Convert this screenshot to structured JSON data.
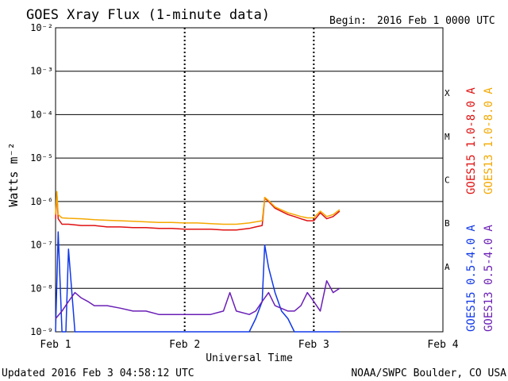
{
  "header": {
    "title": "GOES Xray Flux (1-minute data)",
    "begin_label": "Begin:",
    "begin_value": "2016 Feb 1 0000 UTC"
  },
  "footer": {
    "updated": "Updated 2016 Feb  3 04:58:12 UTC",
    "credit": "NOAA/SWPC Boulder, CO USA"
  },
  "colors": {
    "goes15_long": "#e01010",
    "goes13_long": "#f5a800",
    "goes15_short": "#1038e8",
    "goes13_short": "#6a1fb5",
    "grid": "#000000"
  },
  "chart_data": {
    "type": "line",
    "title": "GOES Xray Flux (1-minute data)",
    "xlabel": "Universal Time",
    "ylabel": "Watts m⁻²",
    "y_scale": "log",
    "ylim": [
      1e-09,
      0.01
    ],
    "xlim_days": [
      0,
      3
    ],
    "x_ticks": [
      {
        "day": 0,
        "label": "Feb 1"
      },
      {
        "day": 1,
        "label": "Feb 2"
      },
      {
        "day": 2,
        "label": "Feb 3"
      },
      {
        "day": 3,
        "label": "Feb 4"
      }
    ],
    "y_ticks": [
      {
        "exp": -9,
        "label": "10⁻⁹"
      },
      {
        "exp": -8,
        "label": "10⁻⁸"
      },
      {
        "exp": -7,
        "label": "10⁻⁷"
      },
      {
        "exp": -6,
        "label": "10⁻⁶"
      },
      {
        "exp": -5,
        "label": "10⁻⁵"
      },
      {
        "exp": -4,
        "label": "10⁻⁴"
      },
      {
        "exp": -3,
        "label": "10⁻³"
      },
      {
        "exp": -2,
        "label": "10⁻²"
      }
    ],
    "flare_classes": [
      {
        "label": "A",
        "center_exp": -7.5
      },
      {
        "label": "B",
        "center_exp": -6.5
      },
      {
        "label": "C",
        "center_exp": -5.5
      },
      {
        "label": "M",
        "center_exp": -4.5
      },
      {
        "label": "X",
        "center_exp": -3.5
      }
    ],
    "series": [
      {
        "name": "GOES15 1.0-8.0 A",
        "color": "#e01010",
        "x_day": [
          0.0,
          0.01,
          0.02,
          0.05,
          0.1,
          0.2,
          0.3,
          0.4,
          0.5,
          0.6,
          0.7,
          0.8,
          0.9,
          1.0,
          1.1,
          1.2,
          1.3,
          1.4,
          1.5,
          1.55,
          1.6,
          1.62,
          1.65,
          1.7,
          1.8,
          1.85,
          1.9,
          1.95,
          2.0,
          2.05,
          2.1,
          2.15,
          2.2
        ],
        "y": [
          4e-07,
          1.6e-06,
          4e-07,
          3e-07,
          3e-07,
          2.8e-07,
          2.8e-07,
          2.6e-07,
          2.6e-07,
          2.5e-07,
          2.5e-07,
          2.4e-07,
          2.4e-07,
          2.3e-07,
          2.3e-07,
          2.3e-07,
          2.2e-07,
          2.2e-07,
          2.4e-07,
          2.6e-07,
          2.8e-07,
          1.2e-06,
          1e-06,
          7e-07,
          5e-07,
          4.5e-07,
          4e-07,
          3.6e-07,
          3.6e-07,
          5.5e-07,
          4e-07,
          4.5e-07,
          6e-07
        ]
      },
      {
        "name": "GOES13 1.0-8.0 A",
        "color": "#f5a800",
        "x_day": [
          0.0,
          0.01,
          0.02,
          0.05,
          0.1,
          0.2,
          0.3,
          0.4,
          0.5,
          0.6,
          0.7,
          0.8,
          0.9,
          1.0,
          1.1,
          1.2,
          1.3,
          1.4,
          1.5,
          1.55,
          1.6,
          1.62,
          1.65,
          1.7,
          1.8,
          1.85,
          1.9,
          1.95,
          2.0,
          2.05,
          2.1,
          2.15,
          2.2
        ],
        "y": [
          5e-07,
          1.7e-06,
          5e-07,
          4.2e-07,
          4.1e-07,
          4e-07,
          3.8e-07,
          3.7e-07,
          3.6e-07,
          3.5e-07,
          3.4e-07,
          3.3e-07,
          3.3e-07,
          3.2e-07,
          3.2e-07,
          3.1e-07,
          3e-07,
          3e-07,
          3.2e-07,
          3.4e-07,
          3.6e-07,
          1.25e-06,
          1.05e-06,
          7.5e-07,
          5.5e-07,
          5e-07,
          4.5e-07,
          4.2e-07,
          4.2e-07,
          6e-07,
          4.5e-07,
          5e-07,
          6.5e-07
        ]
      },
      {
        "name": "GOES15 0.5-4.0 A",
        "color": "#1038e8",
        "x_day": [
          0.0,
          0.02,
          0.05,
          0.08,
          0.1,
          0.15,
          0.2,
          0.3,
          0.4,
          0.5,
          0.6,
          0.7,
          0.8,
          0.9,
          1.0,
          1.2,
          1.4,
          1.5,
          1.55,
          1.6,
          1.62,
          1.65,
          1.7,
          1.75,
          1.8,
          1.85,
          1.9,
          2.0,
          2.1,
          2.2
        ],
        "y": [
          1e-09,
          2e-07,
          1e-09,
          1e-09,
          8e-08,
          1e-09,
          1e-09,
          1e-09,
          1e-09,
          1e-09,
          1e-09,
          1e-09,
          1e-09,
          1e-09,
          1e-09,
          1e-09,
          1e-09,
          1e-09,
          2e-09,
          5e-09,
          1e-07,
          3e-08,
          8e-09,
          3e-09,
          2e-09,
          1e-09,
          1e-09,
          1e-09,
          1e-09,
          1e-09
        ]
      },
      {
        "name": "GOES13 0.5-4.0 A",
        "color": "#6a1fb5",
        "x_day": [
          0.0,
          0.05,
          0.1,
          0.15,
          0.2,
          0.25,
          0.3,
          0.4,
          0.5,
          0.6,
          0.7,
          0.8,
          0.9,
          1.0,
          1.1,
          1.2,
          1.3,
          1.35,
          1.4,
          1.5,
          1.55,
          1.6,
          1.65,
          1.7,
          1.8,
          1.85,
          1.9,
          1.95,
          2.0,
          2.05,
          2.1,
          2.15,
          2.2
        ],
        "y": [
          2e-09,
          3e-09,
          5e-09,
          8e-09,
          6e-09,
          5e-09,
          4e-09,
          4e-09,
          3.5e-09,
          3e-09,
          3e-09,
          2.5e-09,
          2.5e-09,
          2.5e-09,
          2.5e-09,
          2.5e-09,
          3e-09,
          8e-09,
          3e-09,
          2.5e-09,
          3e-09,
          5e-09,
          8e-09,
          4e-09,
          3e-09,
          3e-09,
          4e-09,
          8e-09,
          5e-09,
          3e-09,
          1.5e-08,
          8e-09,
          1e-08
        ]
      }
    ],
    "legend_placement": "right (vertical labels)",
    "grid": "horizontal lines at each decade; dotted vertical lines at day boundaries"
  }
}
